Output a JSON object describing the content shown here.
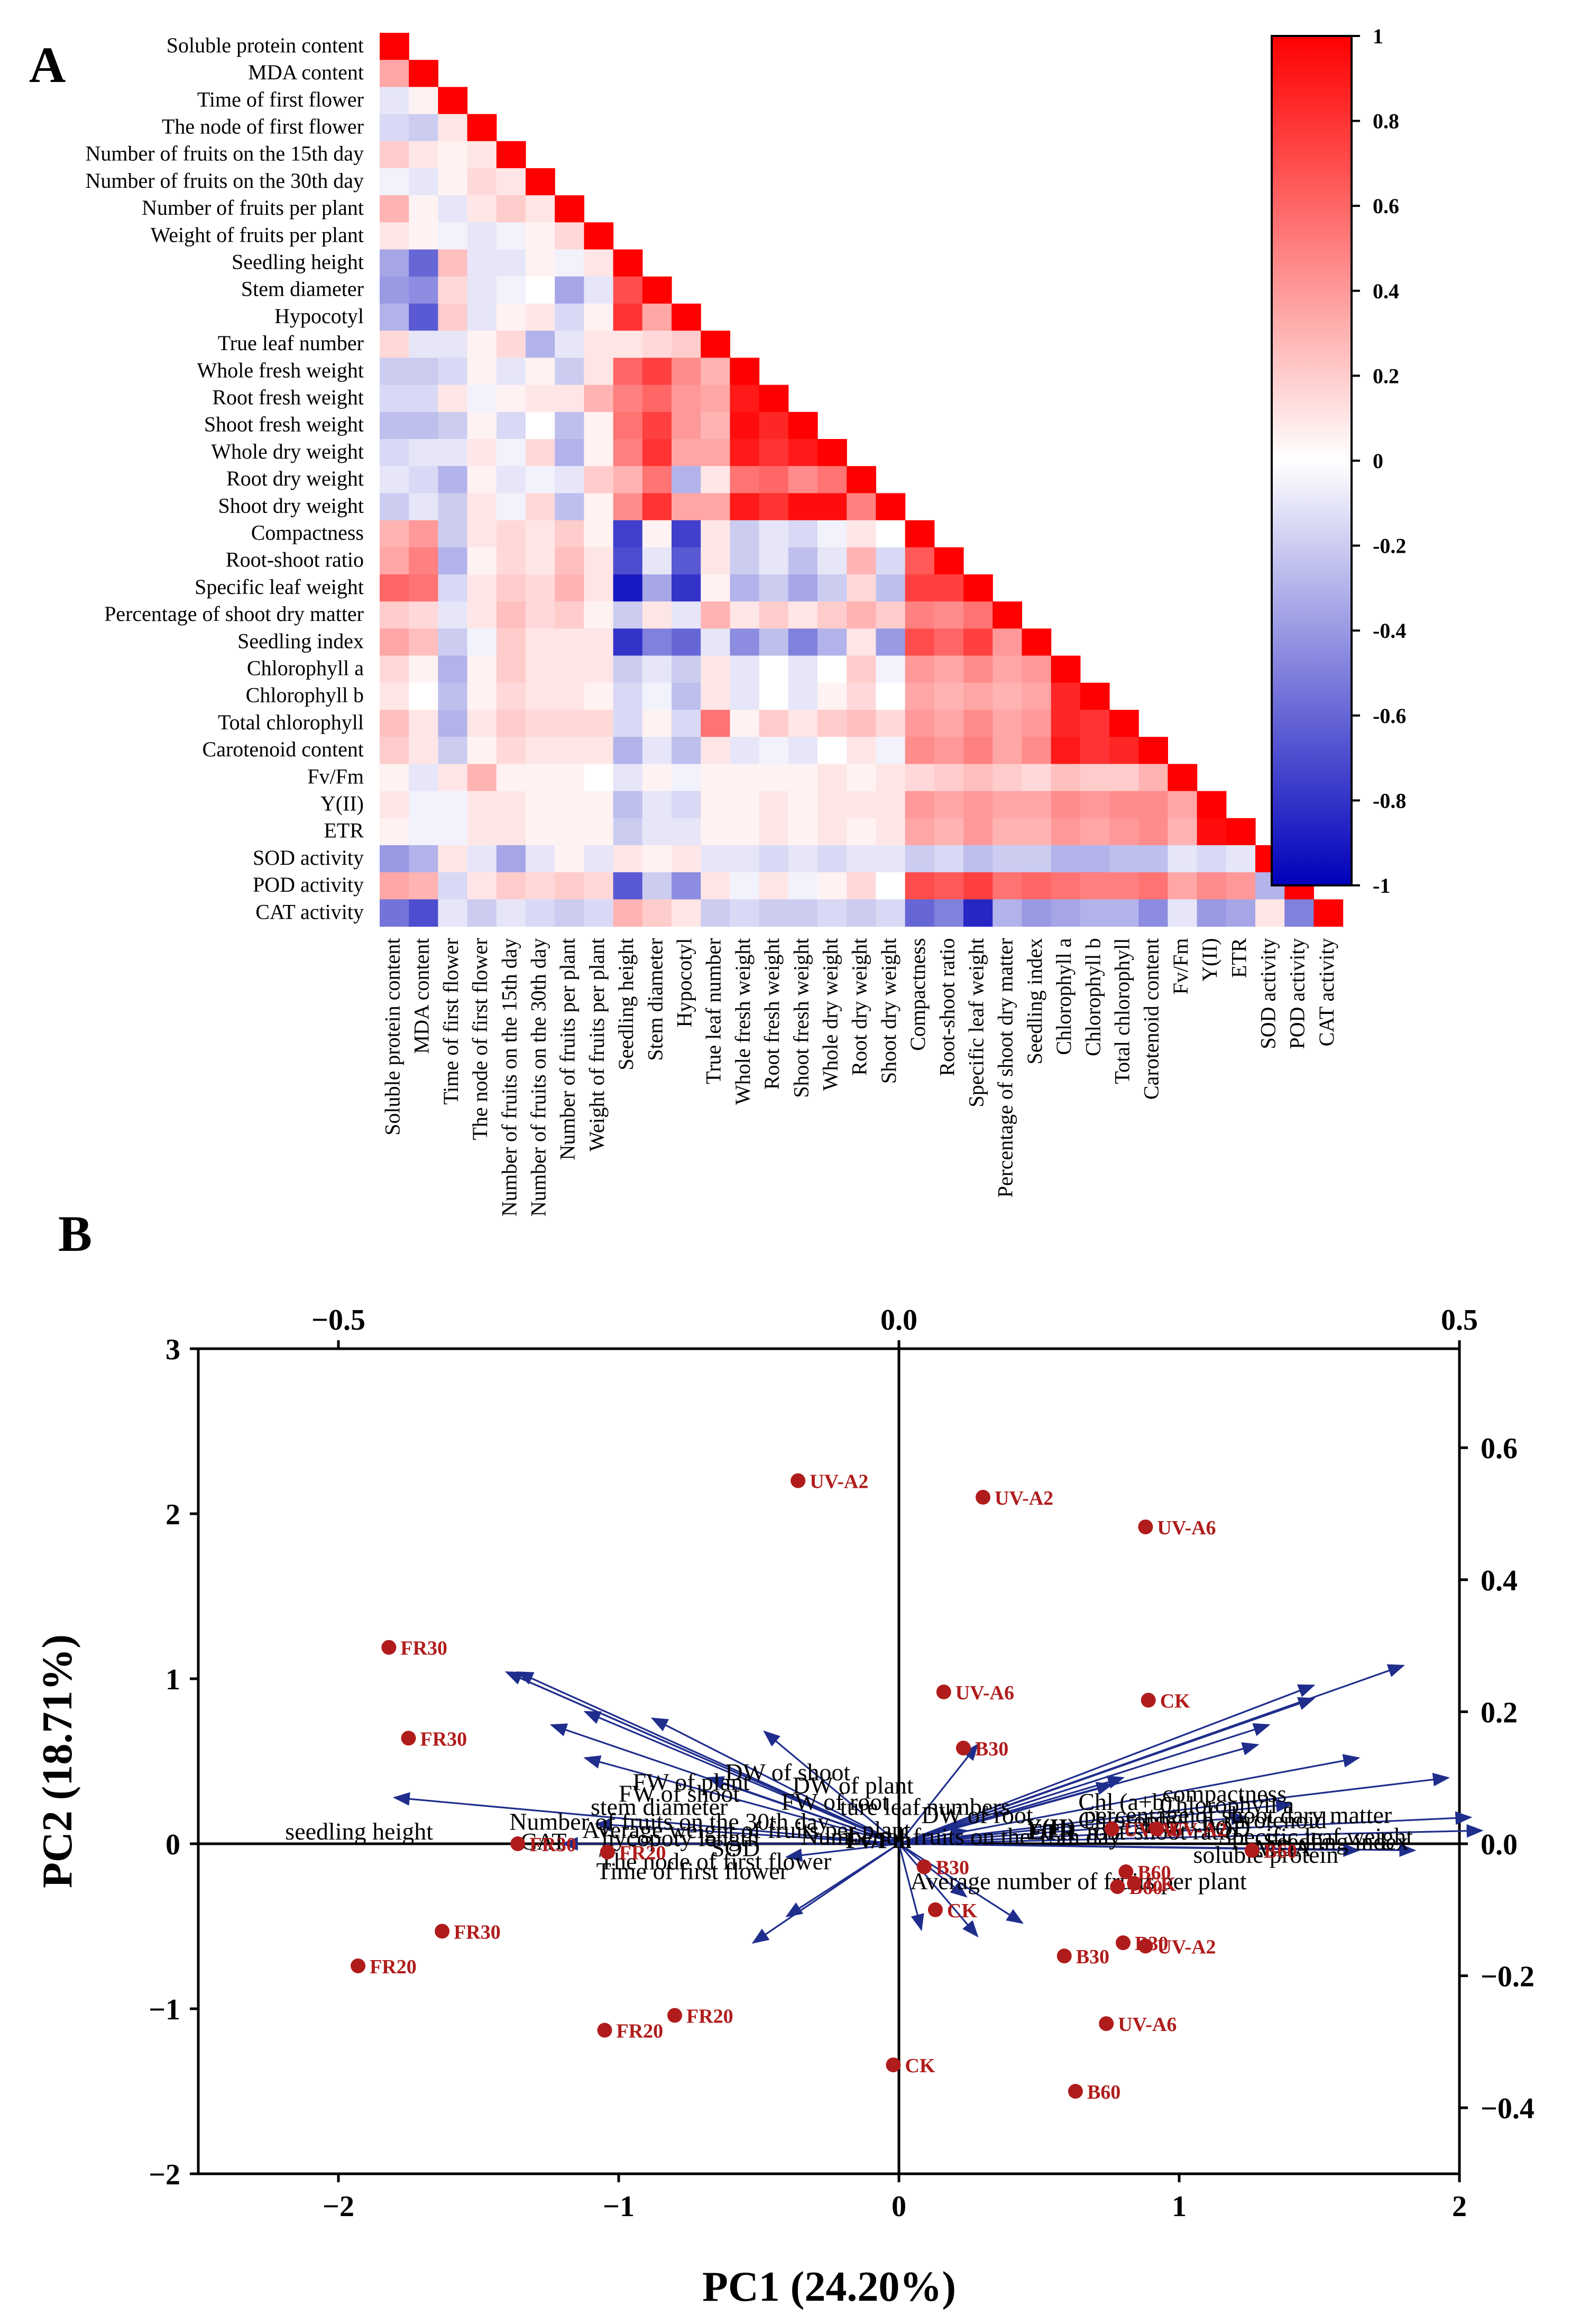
{
  "panels": {
    "a_letter": "A",
    "b_letter": "B"
  },
  "colors": {
    "negative": "#0000bb",
    "zero": "#ffffff",
    "positive": "#ff0000",
    "arrow": "#1f2d8c",
    "point": "#b01c1c"
  },
  "chart_data": [
    {
      "type": "heatmap",
      "variables": [
        "Soluble protein content",
        "MDA content",
        "Time of  first flower",
        "The node of  first flower",
        "Number of fruits on the 15th day",
        "Number of fruits on the 30th day",
        "Number of fruits per plant",
        "Weight of fruits per plant",
        "Seedling height",
        "Stem diameter",
        "Hypocotyl",
        "True leaf number",
        "Whole fresh weight",
        "Root fresh weight",
        "Shoot fresh weight",
        "Whole dry weight",
        "Root dry weight",
        "Shoot dry weight",
        "Compactness",
        "Root-shoot ratio",
        "Specific leaf weight",
        "Percentage of shoot dry matter",
        "Seedling index",
        "Chlorophyll a",
        "Chlorophyll b",
        "Total chlorophyll",
        "Carotenoid content",
        "Fv/Fm",
        "Y(II)",
        "ETR",
        "SOD activity",
        "POD activity",
        "CAT activity"
      ],
      "matrix_shape": "lower-triangular",
      "value_range": [
        -1,
        1
      ],
      "colorbar_ticks": [
        "1",
        "0.8",
        "0.6",
        "0.4",
        "0.2",
        "0",
        "-0.2",
        "-0.4",
        "-0.6",
        "-0.8",
        "-1"
      ],
      "values": [
        [
          1
        ],
        [
          0.35,
          1
        ],
        [
          -0.1,
          0.05,
          1
        ],
        [
          -0.15,
          -0.2,
          0.1,
          1
        ],
        [
          0.2,
          0.1,
          0.05,
          0.1,
          1
        ],
        [
          -0.05,
          -0.1,
          0.05,
          0.15,
          0.1,
          1
        ],
        [
          0.3,
          0.05,
          -0.1,
          0.1,
          0.2,
          0.1,
          1
        ],
        [
          0.1,
          0.05,
          -0.05,
          -0.1,
          -0.05,
          0.05,
          0.15,
          1
        ],
        [
          -0.35,
          -0.6,
          0.25,
          -0.1,
          -0.1,
          0.05,
          -0.05,
          0.1,
          1
        ],
        [
          -0.4,
          -0.45,
          0.15,
          -0.1,
          -0.05,
          0.0,
          -0.35,
          -0.1,
          0.7,
          1
        ],
        [
          -0.3,
          -0.65,
          0.2,
          -0.1,
          0.05,
          0.1,
          -0.15,
          0.05,
          0.8,
          0.35,
          1
        ],
        [
          0.15,
          -0.1,
          -0.1,
          0.05,
          0.15,
          -0.3,
          -0.1,
          0.1,
          0.1,
          0.15,
          0.2,
          1
        ],
        [
          -0.2,
          -0.2,
          -0.15,
          0.05,
          -0.1,
          0.05,
          -0.2,
          0.1,
          0.6,
          0.75,
          0.45,
          0.3,
          1
        ],
        [
          -0.15,
          -0.15,
          0.1,
          -0.05,
          0.05,
          0.1,
          0.1,
          0.3,
          0.5,
          0.6,
          0.4,
          0.35,
          0.9,
          1
        ],
        [
          -0.25,
          -0.25,
          -0.2,
          0.05,
          -0.15,
          0.0,
          -0.25,
          0.05,
          0.55,
          0.75,
          0.4,
          0.3,
          0.95,
          0.85,
          1
        ],
        [
          -0.15,
          -0.1,
          -0.1,
          0.1,
          -0.05,
          0.15,
          -0.3,
          0.05,
          0.5,
          0.8,
          0.35,
          0.35,
          0.9,
          0.8,
          0.9,
          1
        ],
        [
          -0.1,
          -0.15,
          -0.3,
          0.05,
          -0.1,
          -0.05,
          -0.1,
          0.2,
          0.3,
          0.55,
          -0.3,
          0.1,
          0.55,
          0.6,
          0.45,
          0.55,
          1
        ],
        [
          -0.2,
          -0.1,
          -0.2,
          0.1,
          -0.05,
          0.15,
          -0.25,
          0.05,
          0.45,
          0.8,
          0.35,
          0.35,
          0.9,
          0.8,
          0.95,
          0.95,
          0.5,
          1
        ],
        [
          0.3,
          0.4,
          -0.2,
          0.1,
          0.15,
          0.1,
          0.2,
          0.05,
          -0.75,
          0.05,
          -0.75,
          0.1,
          -0.2,
          -0.1,
          -0.15,
          -0.05,
          0.1,
          0.0,
          1
        ],
        [
          0.35,
          0.5,
          -0.3,
          0.05,
          0.15,
          0.1,
          0.25,
          0.1,
          -0.7,
          -0.1,
          -0.65,
          0.1,
          -0.2,
          -0.1,
          -0.25,
          -0.1,
          0.3,
          -0.15,
          0.65,
          1
        ],
        [
          0.6,
          0.55,
          -0.15,
          0.1,
          0.2,
          0.15,
          0.3,
          0.1,
          -0.9,
          -0.35,
          -0.8,
          0.05,
          -0.3,
          -0.2,
          -0.35,
          -0.2,
          0.15,
          -0.25,
          0.75,
          0.75,
          1
        ],
        [
          0.2,
          0.15,
          -0.1,
          0.1,
          0.25,
          0.15,
          0.2,
          0.05,
          -0.2,
          0.1,
          -0.1,
          0.3,
          0.1,
          0.2,
          0.1,
          0.2,
          0.3,
          0.2,
          0.5,
          0.45,
          0.55,
          1
        ],
        [
          0.35,
          0.25,
          -0.2,
          -0.05,
          0.2,
          0.1,
          0.1,
          0.1,
          -0.8,
          -0.5,
          -0.6,
          -0.1,
          -0.45,
          -0.25,
          -0.5,
          -0.3,
          0.1,
          -0.4,
          0.7,
          0.6,
          0.75,
          0.4,
          1
        ],
        [
          0.15,
          0.05,
          -0.3,
          0.05,
          0.2,
          0.1,
          0.1,
          0.1,
          -0.2,
          -0.1,
          -0.2,
          0.1,
          -0.1,
          0.0,
          -0.1,
          0.0,
          0.2,
          -0.05,
          0.4,
          0.35,
          0.45,
          0.35,
          0.4,
          1
        ],
        [
          0.1,
          0.0,
          -0.25,
          0.05,
          0.15,
          0.1,
          0.1,
          0.05,
          -0.15,
          -0.05,
          -0.25,
          0.1,
          -0.1,
          0.0,
          -0.1,
          0.05,
          0.15,
          0.0,
          0.35,
          0.3,
          0.35,
          0.3,
          0.35,
          0.85,
          1
        ],
        [
          0.25,
          0.1,
          -0.3,
          0.1,
          0.2,
          0.15,
          0.15,
          0.15,
          -0.15,
          0.05,
          -0.15,
          0.55,
          0.05,
          0.2,
          0.1,
          0.2,
          0.25,
          0.15,
          0.4,
          0.35,
          0.45,
          0.35,
          0.4,
          0.85,
          0.8,
          1
        ],
        [
          0.2,
          0.1,
          -0.2,
          0.05,
          0.15,
          0.1,
          0.1,
          0.1,
          -0.3,
          -0.1,
          -0.25,
          0.1,
          -0.1,
          -0.05,
          -0.1,
          0.0,
          0.1,
          -0.05,
          0.45,
          0.4,
          0.5,
          0.35,
          0.45,
          0.9,
          0.8,
          0.85,
          1
        ],
        [
          0.05,
          -0.1,
          0.1,
          0.3,
          0.05,
          0.05,
          0.05,
          0.0,
          -0.1,
          0.05,
          -0.05,
          0.05,
          0.05,
          0.05,
          0.05,
          0.1,
          0.05,
          0.1,
          0.15,
          0.2,
          0.25,
          0.2,
          0.15,
          0.25,
          0.2,
          0.2,
          0.3,
          1
        ],
        [
          0.1,
          -0.05,
          -0.05,
          0.1,
          0.1,
          0.05,
          0.05,
          0.05,
          -0.25,
          -0.1,
          -0.15,
          0.05,
          0.05,
          0.1,
          0.05,
          0.1,
          0.1,
          0.1,
          0.4,
          0.35,
          0.4,
          0.35,
          0.35,
          0.45,
          0.4,
          0.45,
          0.45,
          0.35,
          1
        ],
        [
          0.05,
          -0.05,
          -0.05,
          0.1,
          0.1,
          0.05,
          0.05,
          0.05,
          -0.2,
          -0.1,
          -0.1,
          0.05,
          0.05,
          0.1,
          0.05,
          0.1,
          0.05,
          0.1,
          0.35,
          0.3,
          0.4,
          0.3,
          0.3,
          0.4,
          0.35,
          0.4,
          0.45,
          0.3,
          0.95,
          1
        ],
        [
          -0.4,
          -0.3,
          0.1,
          -0.1,
          -0.35,
          -0.1,
          0.05,
          -0.1,
          0.1,
          0.05,
          0.1,
          -0.1,
          -0.1,
          -0.15,
          -0.1,
          -0.15,
          -0.1,
          -0.1,
          -0.2,
          -0.15,
          -0.25,
          -0.2,
          -0.2,
          -0.3,
          -0.3,
          -0.25,
          -0.25,
          -0.1,
          -0.15,
          -0.1,
          1
        ],
        [
          0.35,
          0.3,
          -0.15,
          0.1,
          0.2,
          0.15,
          0.2,
          0.15,
          -0.65,
          -0.2,
          -0.45,
          0.1,
          -0.05,
          0.1,
          -0.05,
          0.05,
          0.15,
          0.0,
          0.7,
          0.65,
          0.75,
          0.55,
          0.6,
          0.55,
          0.5,
          0.5,
          0.55,
          0.35,
          0.45,
          0.4,
          -0.3,
          1
        ],
        [
          -0.55,
          -0.7,
          -0.1,
          -0.2,
          -0.1,
          -0.15,
          -0.2,
          -0.15,
          0.3,
          0.2,
          0.1,
          -0.2,
          -0.15,
          -0.2,
          -0.2,
          -0.15,
          -0.2,
          -0.15,
          -0.6,
          -0.5,
          -0.85,
          -0.3,
          -0.4,
          -0.35,
          -0.3,
          -0.3,
          -0.45,
          -0.1,
          -0.4,
          -0.35,
          0.1,
          -0.5,
          1
        ]
      ]
    },
    {
      "type": "scatter",
      "xlabel": "PC1 (24.20%)",
      "ylabel": "PC2 (18.71%)",
      "xlim": [
        -2.5,
        2
      ],
      "ylim": [
        -2,
        3
      ],
      "x_ticks": [
        "−2",
        "−1",
        "0",
        "1",
        "2"
      ],
      "y_ticks": [
        "−2",
        "−1",
        "0",
        "1",
        "2",
        "3"
      ],
      "top_axis": {
        "range": [
          -0.625,
          0.5
        ],
        "ticks": [
          "−0.5",
          "0.0",
          "0.5"
        ]
      },
      "right_axis": {
        "range": [
          -0.5,
          0.75
        ],
        "ticks": [
          "−0.4",
          "−0.2",
          "0.0",
          "0.2",
          "0.4",
          "0.6"
        ]
      },
      "points": [
        {
          "label": "UV-A2",
          "x": -0.36,
          "y": 2.2
        },
        {
          "label": "UV-A2",
          "x": 0.3,
          "y": 2.1
        },
        {
          "label": "UV-A6",
          "x": 0.88,
          "y": 1.92
        },
        {
          "label": "FR30",
          "x": -1.82,
          "y": 1.19
        },
        {
          "label": "FR30",
          "x": -1.75,
          "y": 0.64
        },
        {
          "label": "UV-A6",
          "x": 0.16,
          "y": 0.92
        },
        {
          "label": "CK",
          "x": 0.89,
          "y": 0.87
        },
        {
          "label": "B30",
          "x": 0.23,
          "y": 0.58
        },
        {
          "label": "UV-A6",
          "x": 0.76,
          "y": 0.09
        },
        {
          "label": "UV-A2",
          "x": 0.92,
          "y": 0.09
        },
        {
          "label": "B60",
          "x": 1.26,
          "y": -0.04
        },
        {
          "label": "FR30",
          "x": -1.36,
          "y": 0.0
        },
        {
          "label": "FR20",
          "x": -1.04,
          "y": -0.05
        },
        {
          "label": "B30",
          "x": 0.09,
          "y": -0.14
        },
        {
          "label": "CK",
          "x": 0.13,
          "y": -0.4
        },
        {
          "label": "B60",
          "x": 0.81,
          "y": -0.17
        },
        {
          "label": "CK",
          "x": 0.84,
          "y": -0.24
        },
        {
          "label": "B60",
          "x": 0.78,
          "y": -0.26
        },
        {
          "label": "B30",
          "x": 0.8,
          "y": -0.6
        },
        {
          "label": "UV-A2",
          "x": 0.88,
          "y": -0.62
        },
        {
          "label": "B30",
          "x": 0.59,
          "y": -0.68
        },
        {
          "label": "FR30",
          "x": -1.63,
          "y": -0.53
        },
        {
          "label": "FR20",
          "x": -1.93,
          "y": -0.74
        },
        {
          "label": "FR20",
          "x": -0.8,
          "y": -1.04
        },
        {
          "label": "FR20",
          "x": -1.05,
          "y": -1.13
        },
        {
          "label": "UV-A6",
          "x": 0.74,
          "y": -1.09
        },
        {
          "label": "CK",
          "x": -0.02,
          "y": -1.34
        },
        {
          "label": "B60",
          "x": 0.63,
          "y": -1.5
        }
      ],
      "loadings": [
        {
          "label": "DW of shoot",
          "x": -0.35,
          "y": 0.26,
          "lx": -0.62,
          "ly": 0.43
        },
        {
          "label": "FW of plant",
          "x": -0.35,
          "y": 0.26,
          "lx": -0.95,
          "ly": 0.37
        },
        {
          "label": "DW of plant",
          "x": -0.28,
          "y": 0.2,
          "lx": -0.38,
          "ly": 0.35
        },
        {
          "label": "FW of shoot",
          "x": -0.34,
          "y": 0.26,
          "lx": -1.0,
          "ly": 0.3
        },
        {
          "label": "FW of root",
          "x": -0.22,
          "y": 0.19,
          "lx": -0.42,
          "ly": 0.25
        },
        {
          "label": "stem diameter",
          "x": -0.31,
          "y": 0.18,
          "lx": -1.1,
          "ly": 0.22
        },
        {
          "label": "ture leaf numbers",
          "x": -0.12,
          "y": 0.17,
          "lx": -0.21,
          "ly": 0.22
        },
        {
          "label": "Chl (a+b)",
          "x": 0.37,
          "y": 0.24,
          "lx": 0.64,
          "ly": 0.25
        },
        {
          "label": "compactness",
          "x": 0.45,
          "y": 0.27,
          "lx": 0.94,
          "ly": 0.3
        },
        {
          "label": "Chlorophyll a",
          "x": 0.37,
          "y": 0.22,
          "lx": 0.93,
          "ly": 0.23
        },
        {
          "label": "DW of root",
          "x": 0.07,
          "y": 0.15,
          "lx": 0.08,
          "ly": 0.17
        },
        {
          "label": "percentage of shoot dary matter",
          "x": 0.33,
          "y": 0.18,
          "lx": 0.66,
          "ly": 0.17
        },
        {
          "label": "Chlorophyll b",
          "x": 0.32,
          "y": 0.15,
          "lx": 0.64,
          "ly": 0.14
        },
        {
          "label": "carotenoid",
          "x": 0.41,
          "y": 0.13,
          "lx": 1.16,
          "ly": 0.14
        },
        {
          "label": "Number of fruits on the 30th day",
          "x": -0.28,
          "y": 0.13,
          "lx": -1.39,
          "ly": 0.13
        },
        {
          "label": "POD",
          "x": 0.49,
          "y": 0.1,
          "lx": 1.08,
          "ly": 0.09
        },
        {
          "label": "Average weight of fruits per plant",
          "x": -0.17,
          "y": 0.1,
          "lx": -1.13,
          "ly": 0.08
        },
        {
          "label": "Y(II)",
          "x": 0.2,
          "y": 0.1,
          "lx": 0.45,
          "ly": 0.1
        },
        {
          "label": "ETR",
          "x": 0.19,
          "y": 0.09,
          "lx": 0.46,
          "ly": 0.07
        },
        {
          "label": "root-shoot ratio",
          "x": 0.35,
          "y": 0.06,
          "lx": 0.67,
          "ly": 0.07
        },
        {
          "label": "seedling height",
          "x": -0.45,
          "y": 0.07,
          "lx": -2.19,
          "ly": 0.07
        },
        {
          "label": "Specific leaf weight",
          "x": 0.51,
          "y": 0.04,
          "lx": 1.14,
          "ly": 0.04
        },
        {
          "label": "Number of fruits on the 15th day",
          "x": 0.31,
          "y": 0.04,
          "lx": -0.35,
          "ly": 0.04
        },
        {
          "label": "hycopoty length",
          "x": -0.27,
          "y": 0.03,
          "lx": -1.06,
          "ly": 0.03
        },
        {
          "label": "Seedling index",
          "x": 0.52,
          "y": 0.02,
          "lx": 1.3,
          "ly": 0.01
        },
        {
          "label": "Fv/Fm",
          "x": 0.06,
          "y": 0.02,
          "lx": -0.19,
          "ly": 0.02
        },
        {
          "label": "CAT",
          "x": -0.3,
          "y": 0.0,
          "lx": -1.35,
          "ly": 0.01
        },
        {
          "label": "MDA",
          "x": 0.46,
          "y": -0.01,
          "lx": 1.27,
          "ly": -0.03
        },
        {
          "label": "SOD",
          "x": -0.1,
          "y": -0.02,
          "lx": -0.67,
          "ly": -0.03
        },
        {
          "label": "soluble protein",
          "x": 0.41,
          "y": -0.01,
          "lx": 1.05,
          "ly": -0.07
        },
        {
          "label": "The node of first flower",
          "x": -0.1,
          "y": -0.11,
          "lx": -1.07,
          "ly": -0.11
        },
        {
          "label": "Time of first flower",
          "x": -0.13,
          "y": -0.15,
          "lx": -1.08,
          "ly": -0.17
        },
        {
          "label": "Average number of fruits per plant",
          "x": 0.11,
          "y": -0.12,
          "lx": 0.04,
          "ly": -0.23
        },
        {
          "label": "",
          "x": 0.02,
          "y": -0.13,
          "lx": 0,
          "ly": 0
        },
        {
          "label": "",
          "x": 0.07,
          "y": -0.14,
          "lx": 0,
          "ly": 0
        },
        {
          "label": "",
          "x": 0.06,
          "y": -0.08,
          "lx": 0,
          "ly": 0
        }
      ]
    }
  ]
}
